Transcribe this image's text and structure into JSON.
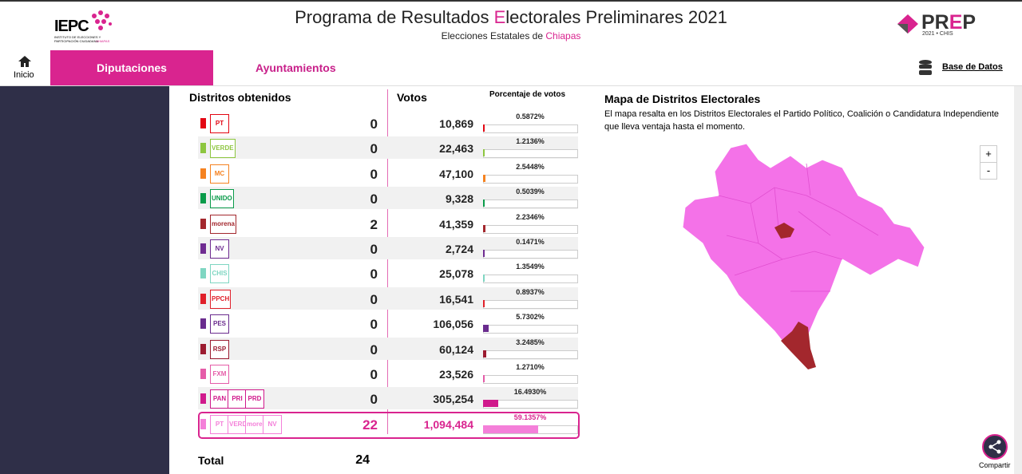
{
  "header": {
    "logo_left": "IEPC",
    "logo_left_sub": "INSTITUTO DE ELECCIONES Y PARTICIPACIÓN CIUDADANA",
    "logo_left_state": "CHIAPAS",
    "title": [
      "Programa de Resultados ",
      "E",
      "lectorales Preliminares 2021"
    ],
    "subtitle": [
      "Elecciones Estatales de ",
      "Chiapas"
    ],
    "logo_right": [
      "PR",
      "E",
      "P"
    ],
    "logo_right_sub": "2021 • CHIS"
  },
  "nav": {
    "home": "Inicio",
    "tabs": [
      "Diputaciones",
      "Ayuntamientos"
    ],
    "database": "Base de Datos"
  },
  "table": {
    "headers": [
      "Distritos obtenidos",
      "Votos",
      "Porcentaje de votos"
    ],
    "rows": [
      {
        "logo": [
          "PT"
        ],
        "color": "#e30613",
        "districts": 0,
        "votes": "10,869",
        "percent": 0.5872,
        "percent_label": "0.5872%"
      },
      {
        "logo": [
          "VERDE"
        ],
        "color": "#8dc63f",
        "districts": 0,
        "votes": "22,463",
        "percent": 1.2136,
        "percent_label": "1.2136%"
      },
      {
        "logo": [
          "MC"
        ],
        "color": "#f58220",
        "districts": 0,
        "votes": "47,100",
        "percent": 2.5448,
        "percent_label": "2.5448%"
      },
      {
        "logo": [
          "UNIDO"
        ],
        "color": "#0a9b4a",
        "districts": 0,
        "votes": "9,328",
        "percent": 0.5039,
        "percent_label": "0.5039%"
      },
      {
        "logo": [
          "morena"
        ],
        "color": "#a3272d",
        "districts": 2,
        "votes": "41,359",
        "percent": 2.2346,
        "percent_label": "2.2346%"
      },
      {
        "logo": [
          "NV"
        ],
        "color": "#6f2c91",
        "districts": 0,
        "votes": "2,724",
        "percent": 0.1471,
        "percent_label": "0.1471%"
      },
      {
        "logo": [
          "CHIS"
        ],
        "color": "#7fd6c2",
        "districts": 0,
        "votes": "25,078",
        "percent": 1.3549,
        "percent_label": "1.3549%"
      },
      {
        "logo": [
          "PPCH"
        ],
        "color": "#e0202a",
        "districts": 0,
        "votes": "16,541",
        "percent": 0.8937,
        "percent_label": "0.8937%"
      },
      {
        "logo": [
          "PES"
        ],
        "color": "#6a2c8e",
        "districts": 0,
        "votes": "106,056",
        "percent": 5.7302,
        "percent_label": "5.7302%"
      },
      {
        "logo": [
          "RSP"
        ],
        "color": "#9b1b30",
        "districts": 0,
        "votes": "60,124",
        "percent": 3.2485,
        "percent_label": "3.2485%"
      },
      {
        "logo": [
          "FXM"
        ],
        "color": "#e55ca8",
        "districts": 0,
        "votes": "23,526",
        "percent": 1.271,
        "percent_label": "1.2710%"
      },
      {
        "logo": [
          "PAN",
          "PRI",
          "PRD"
        ],
        "color": "#d0198c",
        "districts": 0,
        "votes": "305,254",
        "percent": 16.493,
        "percent_label": "16.4930%"
      },
      {
        "logo": [
          "PT",
          "VERDE",
          "morena",
          "NV"
        ],
        "color": "#f47fd9",
        "districts": 22,
        "votes": "1,094,484",
        "percent": 59.1357,
        "percent_label": "59.1357%"
      }
    ],
    "total_label": "Total",
    "total": 24
  },
  "map": {
    "title": "Mapa de Distritos Electorales",
    "description": "El mapa resalta en los Distritos Electorales el Partido Político, Coalición o Candidatura Independiente que lleva ventaja hasta el momento.",
    "zoom_in": "+",
    "zoom_out": "-"
  },
  "share": "Compartir"
}
